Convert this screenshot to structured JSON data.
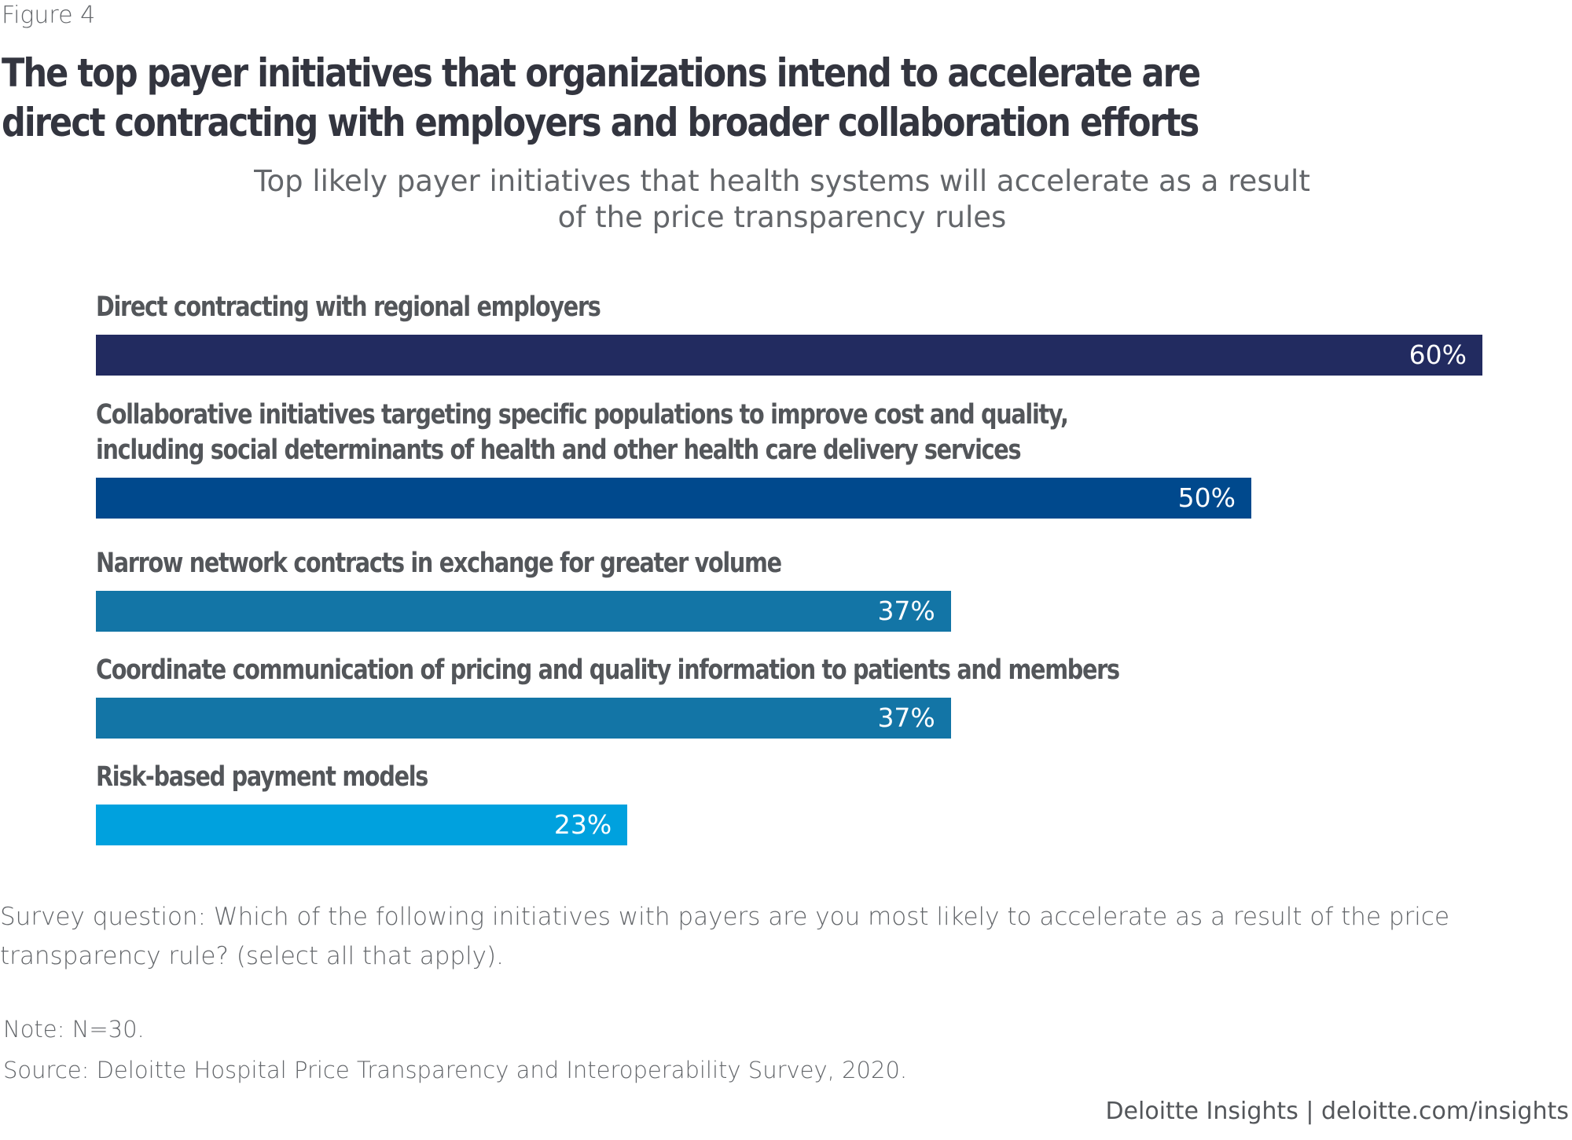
{
  "figure_label": "Figure 4",
  "title": "The top payer initiatives that organizations intend to accelerate are direct contracting with employers and broader collaboration efforts",
  "subtitle": "Top likely payer initiatives that health systems will accelerate as a result of the price transparency rules",
  "chart_data": {
    "type": "bar",
    "orientation": "horizontal",
    "title": "Top likely payer initiatives that health systems will accelerate as a result of the price transparency rules",
    "xlabel": "",
    "ylabel": "",
    "xlim": [
      0,
      60
    ],
    "grid": false,
    "unit": "%",
    "categories": [
      "Direct contracting with regional employers",
      "Collaborative initiatives targeting specific populations to improve cost and quality, including social determinants of health and other health care delivery services",
      "Narrow network contracts in exchange for greater volume",
      "Coordinate communication of pricing and quality information to patients and members",
      "Risk-based payment models"
    ],
    "category_lines": [
      [
        "Direct contracting with regional employers"
      ],
      [
        "Collaborative initiatives targeting specific populations to improve cost and quality,",
        "including social determinants of health and other health care delivery services"
      ],
      [
        "Narrow network contracts in exchange for greater volume"
      ],
      [
        "Coordinate communication of pricing and quality information to patients and members"
      ],
      [
        "Risk-based payment models"
      ]
    ],
    "values": [
      60,
      50,
      37,
      37,
      23
    ],
    "data_labels": [
      "60%",
      "50%",
      "37%",
      "37%",
      "23%"
    ],
    "colors": [
      "#222b60",
      "#00498d",
      "#1375a6",
      "#1375a6",
      "#00a1de"
    ]
  },
  "footer": {
    "survey_question": "Survey question: Which of the following initiatives with payers are you most likely to accelerate as a result of the price transparency rule? (select all that apply).",
    "note": "Note: N=30.",
    "source": "Source: Deloitte Hospital Price Transparency and Interoperability Survey, 2020.",
    "credit": "Deloitte Insights | deloitte.com/insights"
  }
}
